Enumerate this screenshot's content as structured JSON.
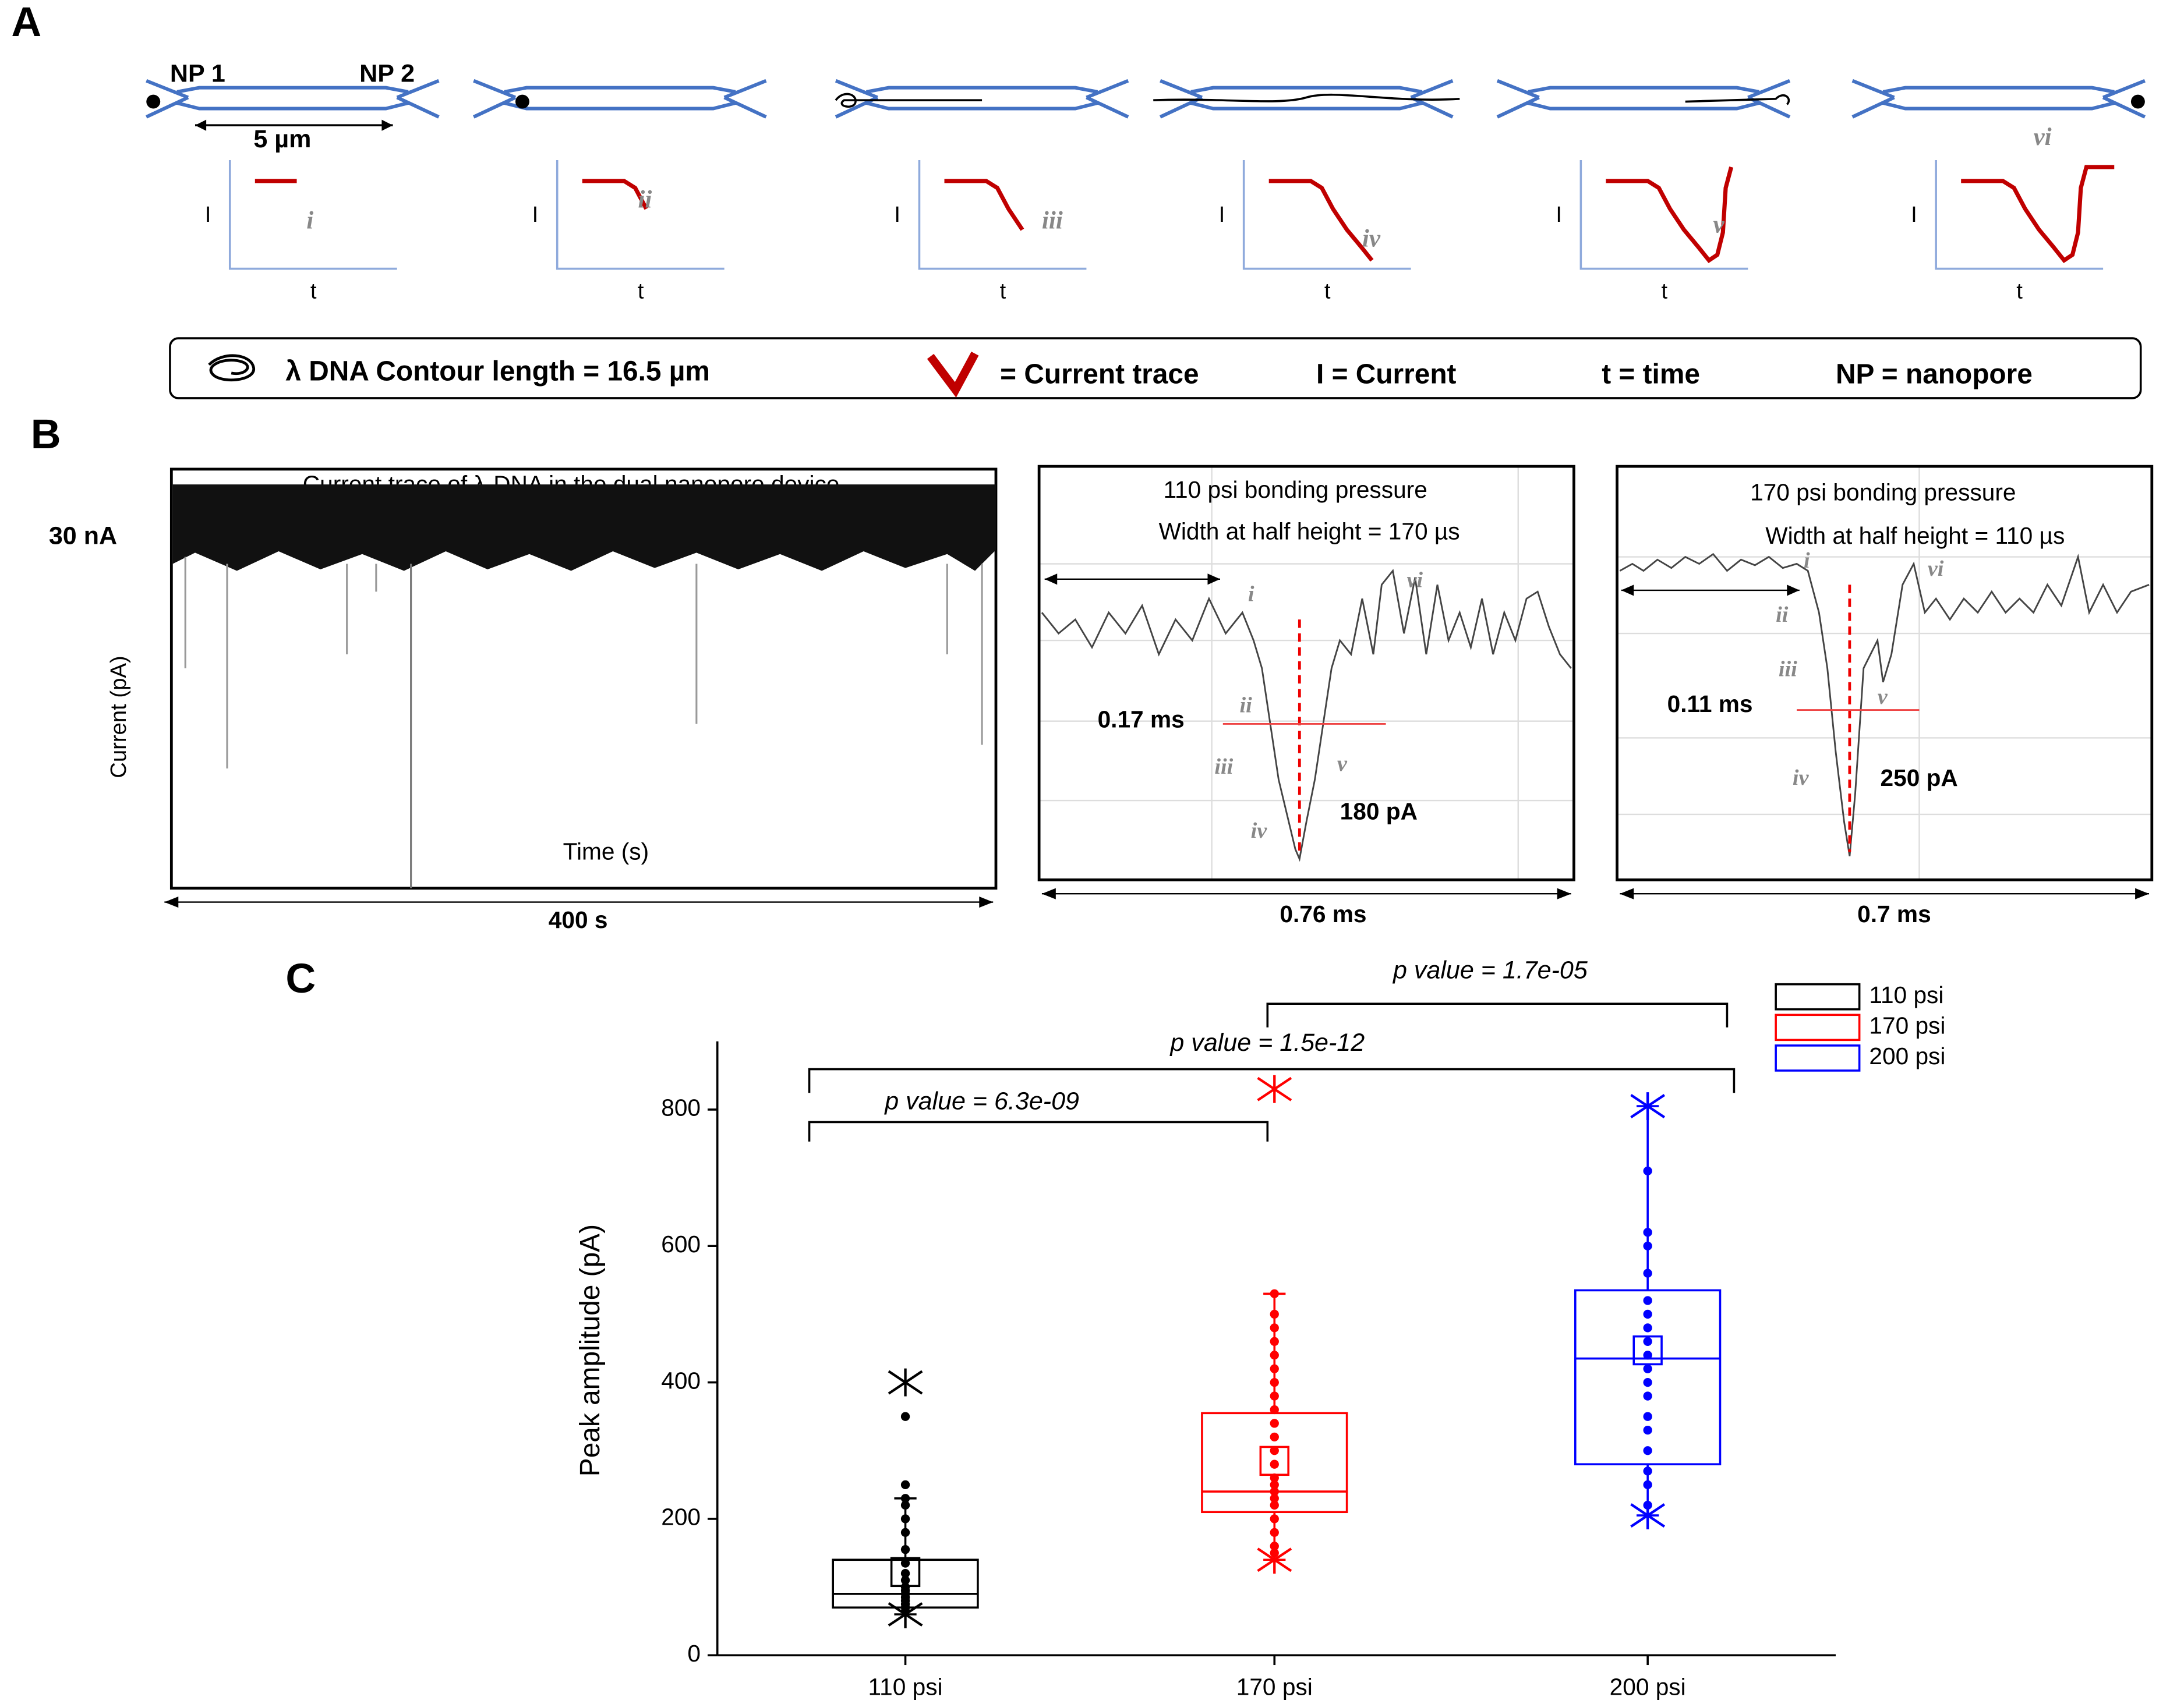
{
  "panel_a": {
    "label": "A",
    "np1": "NP 1",
    "np2": "NP 2",
    "scale": "5 µm",
    "stages": [
      {
        "numeral": "i",
        "y_label": "I",
        "x_label": "t"
      },
      {
        "numeral": "ii",
        "y_label": "I",
        "x_label": "t"
      },
      {
        "numeral": "iii",
        "y_label": "I",
        "x_label": "t"
      },
      {
        "numeral": "iv",
        "y_label": "I",
        "x_label": "t"
      },
      {
        "numeral": "v",
        "y_label": "I",
        "x_label": "t"
      },
      {
        "numeral": "vi",
        "y_label": "I",
        "x_label": "t"
      }
    ],
    "legend": {
      "dna": "λ DNA Contour length = 16.5 µm",
      "trace": "= Current trace",
      "current": "I = Current",
      "time": "t = time",
      "nanopore": "NP = nanopore"
    }
  },
  "panel_b": {
    "label": "B",
    "trace_title": "Current trace of λ-DNA in the dual nanopore device",
    "level": "30 nA",
    "y_label": "Current (pA)",
    "x_label": "Time (s)",
    "duration": "400 s",
    "events": [
      {
        "title": "110 psi bonding pressure",
        "width_label": "Width at half height = 170 µs",
        "half_width": "0.17 ms",
        "amplitude": "180 pA",
        "span": "0.76 ms",
        "numerals": [
          "i",
          "ii",
          "iii",
          "iv",
          "v",
          "vi"
        ]
      },
      {
        "title": "170 psi bonding pressure",
        "width_label": "Width at half height = 110 µs",
        "half_width": "0.11 ms",
        "amplitude": "250 pA",
        "span": "0.7 ms",
        "numerals": [
          "i",
          "ii",
          "iii",
          "iv",
          "v",
          "vi"
        ]
      }
    ]
  },
  "chart_data": {
    "type": "box",
    "label": "C",
    "y_label": "Peak amplitude (pA)",
    "categories": [
      "110 psi",
      "170 psi",
      "200 psi"
    ],
    "ylim": [
      0,
      900
    ],
    "yticks": [
      0,
      200,
      400,
      600,
      800
    ],
    "annotations": [
      "p value = 6.3e-09",
      "p value = 1.5e-12",
      "p value = 1.7e-05"
    ],
    "series": [
      {
        "name": "110 psi",
        "color": "#000000",
        "q1": 70,
        "median": 90,
        "q3": 140,
        "mean": 122,
        "whisker_low": 60,
        "whisker_high": 230,
        "extremes": [
          60,
          400
        ],
        "points": [
          350,
          250,
          230,
          220,
          200,
          180,
          155,
          135,
          120,
          110,
          100,
          95,
          90,
          85,
          80,
          75,
          70,
          65
        ]
      },
      {
        "name": "170 psi",
        "color": "#ff0000",
        "q1": 210,
        "median": 240,
        "q3": 355,
        "mean": 285,
        "whisker_low": 140,
        "whisker_high": 530,
        "extremes": [
          140,
          830
        ],
        "points": [
          530,
          500,
          480,
          460,
          440,
          420,
          400,
          380,
          360,
          340,
          320,
          300,
          280,
          260,
          250,
          240,
          230,
          220,
          200,
          180,
          160,
          150
        ]
      },
      {
        "name": "200 psi",
        "color": "#0000ff",
        "q1": 280,
        "median": 435,
        "q3": 535,
        "mean": 447,
        "whisker_low": 205,
        "whisker_high": 805,
        "extremes": [
          205,
          805
        ],
        "points": [
          710,
          620,
          600,
          560,
          520,
          500,
          480,
          460,
          440,
          420,
          400,
          380,
          350,
          330,
          300,
          270,
          250,
          220
        ]
      }
    ]
  }
}
